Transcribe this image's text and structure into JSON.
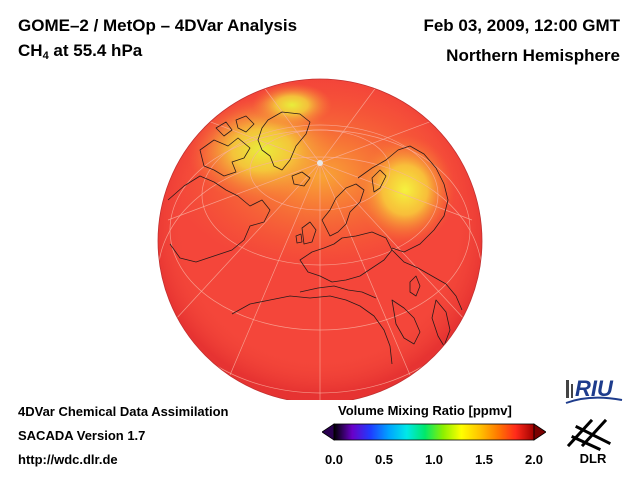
{
  "header": {
    "title_line1": "GOME–2 / MetOp – 4DVar Analysis",
    "species": "CH",
    "species_sub": "4",
    "level_suffix": " at 55.4 hPa",
    "date": "Feb 03, 2009, 12:00 GMT",
    "region": "Northern Hemisphere"
  },
  "footer": {
    "line1": "4DVar Chemical Data Assimilation",
    "line2": "SACADA Version 1.7",
    "line3": "http://wdc.dlr.de"
  },
  "colorbar": {
    "title": "Volume Mixing Ratio [ppmv]",
    "ticks": [
      "0.0",
      "0.5",
      "1.0",
      "1.5",
      "2.0"
    ],
    "range": [
      0.0,
      2.0
    ],
    "stops": [
      "#000000",
      "#6a00c8",
      "#1f3cff",
      "#00a2ff",
      "#00e8e8",
      "#00e86a",
      "#8cf000",
      "#ffff00",
      "#ffc400",
      "#ff7a00",
      "#ff2a1a",
      "#a00000"
    ]
  },
  "map": {
    "projection": "orthographic",
    "field_colors": {
      "base": "#f4463a",
      "mid": "#f86a33",
      "high": "#f9a835",
      "peak": "#f5e93a",
      "edge": "#e93530"
    }
  },
  "logos": {
    "riu": "RIU",
    "dlr": "DLR"
  }
}
